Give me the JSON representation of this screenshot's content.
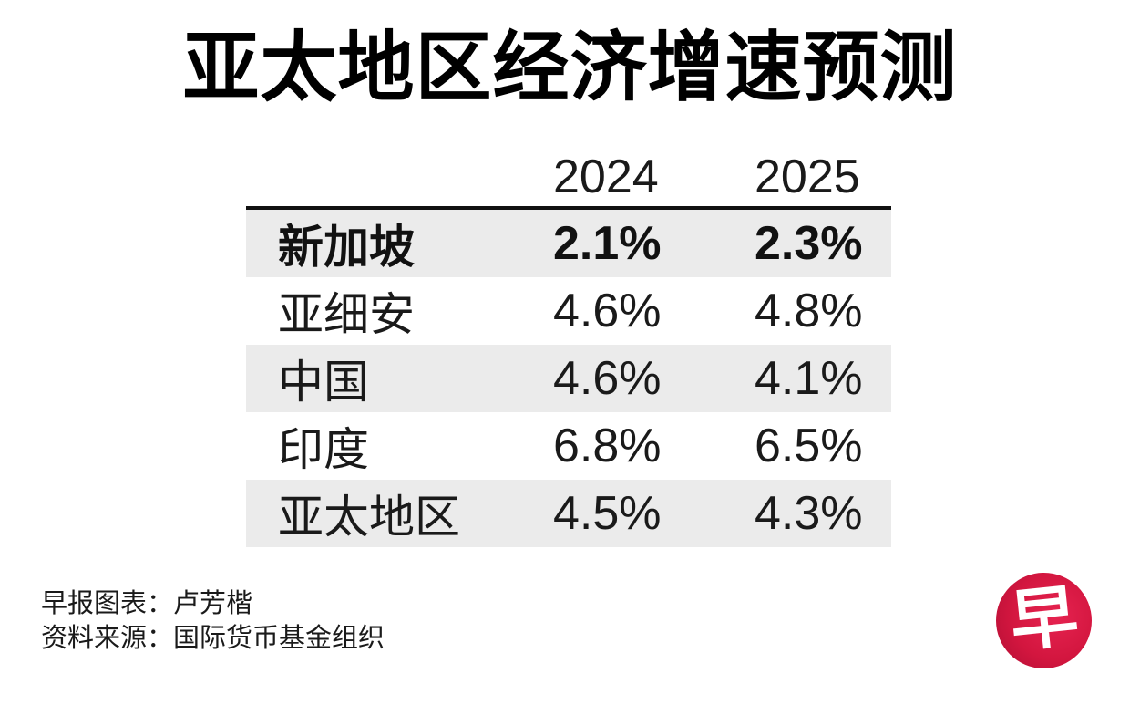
{
  "title": "亚太地区经济增速预测",
  "colors": {
    "text": "#1a1a1a",
    "row_stripe": "#EBEBEB",
    "header_rule": "#111111",
    "logo_red": "#d3163f",
    "logo_glyph_color": "#ffffff"
  },
  "table": {
    "columns": [
      "2024",
      "2025"
    ],
    "rows": [
      {
        "label": "新加坡",
        "y2024": "2.1%",
        "y2025": "2.3%",
        "highlight": true
      },
      {
        "label": "亚细安",
        "y2024": "4.6%",
        "y2025": "4.8%",
        "highlight": false
      },
      {
        "label": "中国",
        "y2024": "4.6%",
        "y2025": "4.1%",
        "highlight": false
      },
      {
        "label": "印度",
        "y2024": "6.8%",
        "y2025": "6.5%",
        "highlight": false
      },
      {
        "label": "亚太地区",
        "y2024": "4.5%",
        "y2025": "4.3%",
        "highlight": false
      }
    ]
  },
  "footer": {
    "credit_line": "早报图表：卢芳楷",
    "source_line": "资料来源：国际货币基金组织"
  },
  "logo": {
    "glyph": "早",
    "name": "zaobao-logo"
  },
  "chart_data": {
    "type": "table",
    "title": "亚太地区经济增速预测",
    "categories": [
      "新加坡",
      "亚细安",
      "中国",
      "印度",
      "亚太地区"
    ],
    "series": [
      {
        "name": "2024",
        "values": [
          2.1,
          4.6,
          4.6,
          6.8,
          4.5
        ]
      },
      {
        "name": "2025",
        "values": [
          2.3,
          4.8,
          4.1,
          6.5,
          4.3
        ]
      }
    ],
    "value_unit": "%",
    "highlighted_category": "新加坡",
    "source": "国际货币基金组织",
    "credit": "早报图表：卢芳楷",
    "layout": {
      "striped_rows": [
        0,
        2,
        4
      ],
      "header_rule": true,
      "legend_position": "column-headers"
    }
  }
}
